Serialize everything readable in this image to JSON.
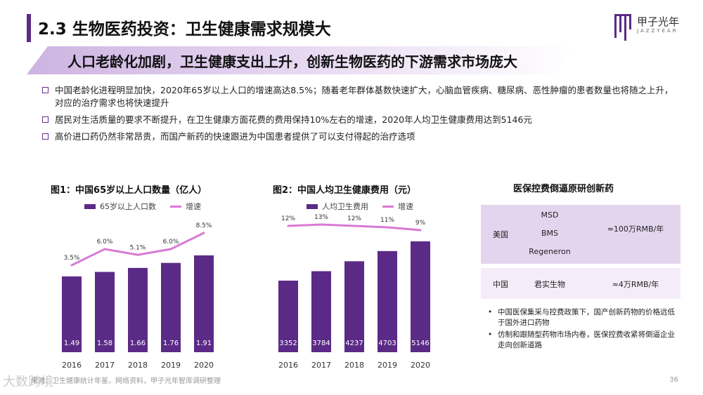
{
  "header": {
    "title": "2.3 生物医药投资：卫生健康需求规模大",
    "logo_text": "甲子光年",
    "logo_sub": "JAZZYEAR"
  },
  "subtitle": "人口老龄化加剧，卫生健康支出上升，创新生物医药的下游需求市场庞大",
  "bullets": [
    "中国老龄化进程明显加快，2020年65岁以上人口的增速高达8.5%；随着老年群体基数快速扩大，心脑血管疾病、糖尿病、恶性肿瘤的患者数量也将随之上升，对应的治疗需求也将快速提升",
    "居民对生活质量的要求不断提升，在卫生健康方面花费的费用保持10%左右的增速，2020年人均卫生健康费用达到5146元",
    "高价进口药仍然非常昂贵，而国产新药的快速跟进为中国患者提供了可以支付得起的治疗选项"
  ],
  "chart_data": [
    {
      "type": "bar",
      "title": "图1：中国65岁以上人口数量（亿人）",
      "categories": [
        "2016",
        "2017",
        "2018",
        "2019",
        "2020"
      ],
      "series": [
        {
          "name": "65岁以上人口数",
          "values": [
            1.49,
            1.58,
            1.66,
            1.76,
            1.91
          ]
        },
        {
          "name": "增速",
          "type": "line",
          "values": [
            3.5,
            6.0,
            5.1,
            6.0,
            8.5
          ]
        }
      ],
      "bar_labels": [
        "1.49",
        "1.58",
        "1.66",
        "1.76",
        "1.91"
      ],
      "line_labels": [
        "3.5%",
        "6.0%",
        "5.1%",
        "6.0%",
        "8.5%"
      ],
      "colors": {
        "bar": "#5b2a86",
        "line": "#d77ad4"
      }
    },
    {
      "type": "bar",
      "title": "图2：中国人均卫生健康费用（元）",
      "categories": [
        "2016",
        "2017",
        "2018",
        "2019",
        "2020"
      ],
      "series": [
        {
          "name": "人均卫生费用",
          "values": [
            3352,
            3784,
            4237,
            4703,
            5146
          ]
        },
        {
          "name": "增速",
          "type": "line",
          "values": [
            12,
            13,
            12,
            11,
            9
          ]
        }
      ],
      "bar_labels": [
        "3352",
        "3784",
        "4237",
        "4703",
        "5146"
      ],
      "line_labels": [
        "12%",
        "13%",
        "12%",
        "11%",
        "9%"
      ],
      "colors": {
        "bar": "#5b2a86",
        "line": "#d77ad4"
      }
    }
  ],
  "table": {
    "title": "医保控费倒逼原研创新药",
    "rows": [
      {
        "country": "美国",
        "companies": [
          "MSD",
          "BMS",
          "Regeneron"
        ],
        "price": "≈100万RMB/年"
      },
      {
        "country": "中国",
        "companies": [
          "君实生物"
        ],
        "price": "≈4万RMB/年"
      }
    ]
  },
  "notes": [
    "中国医保集采与控费政策下，国产创新药物的价格远低于国外进口药物",
    "仿制和跟随型药物市场内卷，医保控费收紧将倒逼企业走向创新道路"
  ],
  "footer": {
    "source": "来源：卫生健康统计年鉴，网络资料，甲子光年智库调研整理",
    "page": "36",
    "watermark": "大数跨境"
  }
}
